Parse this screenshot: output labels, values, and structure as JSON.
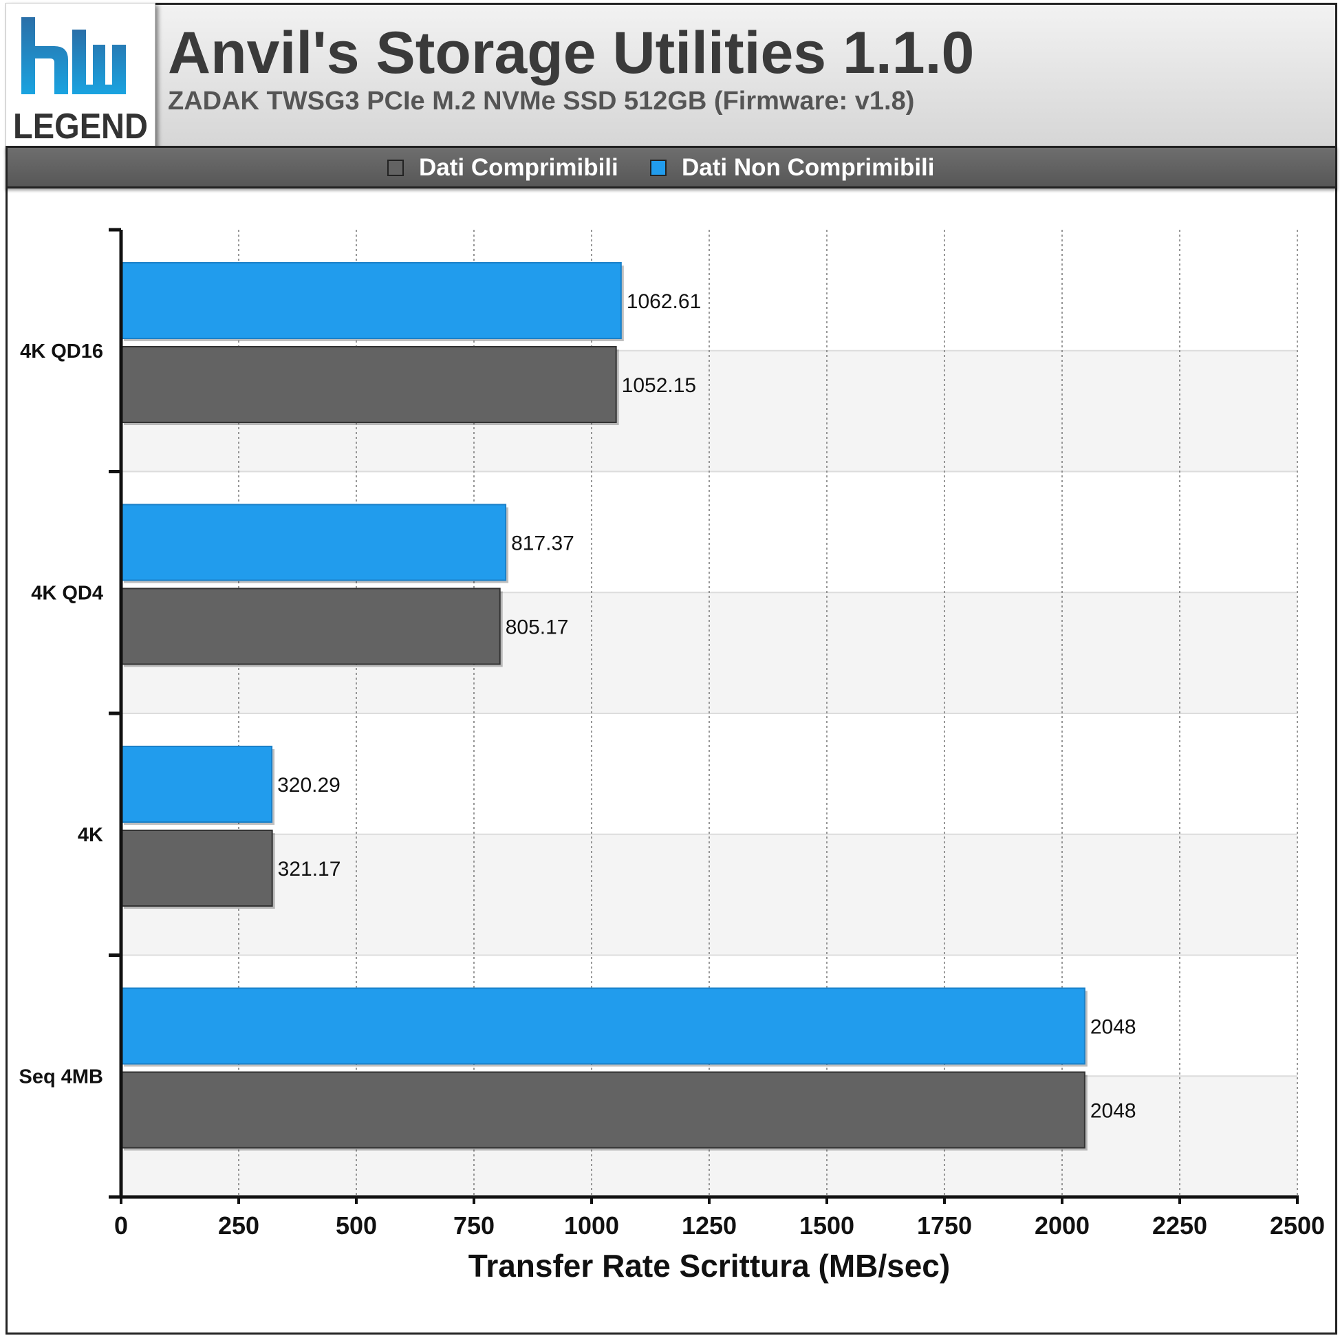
{
  "header": {
    "title": "Anvil's Storage Utilities 1.1.0",
    "subtitle": "ZADAK TWSG3 PCIe M.2 NVMe SSD 512GB (Firmware: v1.8)"
  },
  "logo": {
    "text": "LEGEND",
    "icon": "hwlegend-logo"
  },
  "legend": {
    "items": [
      {
        "label": "Dati Comprimibili",
        "color": "#636363"
      },
      {
        "label": "Dati Non Comprimibili",
        "color": "#219ced"
      }
    ]
  },
  "chart_data": {
    "type": "bar",
    "orientation": "horizontal",
    "categories": [
      "4K QD16",
      "4K QD4",
      "4K",
      "Seq 4MB"
    ],
    "series": [
      {
        "name": "Dati Non Comprimibili",
        "color": "#219ced",
        "values": [
          1062.61,
          817.37,
          320.29,
          2048
        ]
      },
      {
        "name": "Dati Comprimibili",
        "color": "#636363",
        "values": [
          1052.15,
          805.17,
          321.17,
          2048
        ]
      }
    ],
    "value_labels": {
      "Dati Non Comprimibili": [
        "1062.61",
        "817.37",
        "320.29",
        "2048"
      ],
      "Dati Comprimibili": [
        "1052.15",
        "805.17",
        "321.17",
        "2048"
      ]
    },
    "xlabel": "Transfer Rate Scrittura (MB/sec)",
    "xlim": [
      0,
      2500
    ],
    "xticks": [
      0,
      250,
      500,
      750,
      1000,
      1250,
      1500,
      1750,
      2000,
      2250,
      2500
    ],
    "grid": true,
    "legend_position": "top"
  }
}
